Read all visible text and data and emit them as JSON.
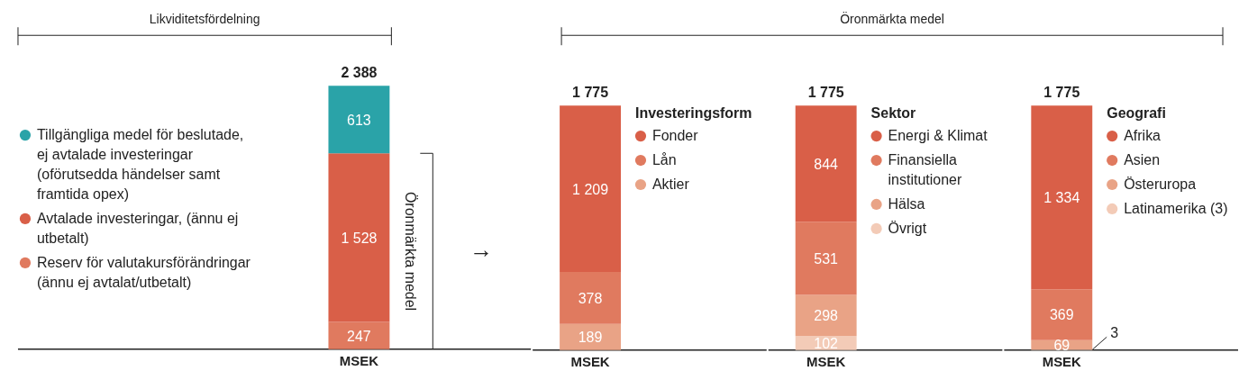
{
  "chart_data": [
    {
      "type": "bar",
      "stacked": true,
      "title": "Likviditetsfördelning",
      "categories": [
        "MSEK"
      ],
      "legend": "left",
      "totals": [
        "2 388"
      ],
      "annotations": [
        "Öronmärkta medel",
        "→"
      ],
      "series": [
        {
          "name": "Reserv för valutakursförändringar (ännu ej avtalat/utbetalt)",
          "color": "#e07a5f",
          "values": [
            247
          ],
          "value_labels": [
            "247"
          ]
        },
        {
          "name": "Avtalade investeringar, (ännu ej utbetalt)",
          "color": "#d95f48",
          "values": [
            1528
          ],
          "value_labels": [
            "1 528"
          ]
        },
        {
          "name": "Tillgängliga medel för beslutade, ej avtalade investeringar (oförutsedda händelser samt framtida opex)",
          "color": "#2aa3a8",
          "values": [
            613
          ],
          "value_labels": [
            "613"
          ]
        }
      ]
    },
    {
      "type": "bar",
      "stacked": true,
      "categories": [
        "MSEK"
      ],
      "legend": "right",
      "legend_title": "Investeringsform",
      "totals": [
        "1 775"
      ],
      "series": [
        {
          "name": "Aktier",
          "color": "#e9a386",
          "values": [
            189
          ],
          "value_labels": [
            "189"
          ]
        },
        {
          "name": "Lån",
          "color": "#e07a5f",
          "values": [
            378
          ],
          "value_labels": [
            "378"
          ]
        },
        {
          "name": "Fonder",
          "color": "#d95f48",
          "values": [
            1209
          ],
          "value_labels": [
            "1 209"
          ]
        }
      ]
    },
    {
      "type": "bar",
      "stacked": true,
      "title": "Öronmärkta medel",
      "categories": [
        "MSEK"
      ],
      "legend": "right",
      "legend_title": "Sektor",
      "totals": [
        "1 775"
      ],
      "series": [
        {
          "name": "Övrigt",
          "color": "#f3cbb7",
          "values": [
            102
          ],
          "value_labels": [
            "102"
          ]
        },
        {
          "name": "Hälsa",
          "color": "#e9a386",
          "values": [
            298
          ],
          "value_labels": [
            "298"
          ]
        },
        {
          "name": "Finansiella institutioner",
          "color": "#e07a5f",
          "values": [
            531
          ],
          "value_labels": [
            "531"
          ]
        },
        {
          "name": "Energi & Klimat",
          "color": "#d95f48",
          "values": [
            844
          ],
          "value_labels": [
            "844"
          ]
        }
      ]
    },
    {
      "type": "bar",
      "stacked": true,
      "categories": [
        "MSEK"
      ],
      "legend": "right",
      "legend_title": "Geografi",
      "totals": [
        "1 775"
      ],
      "series": [
        {
          "name": "Latinamerika (3)",
          "color": "#f3cbb7",
          "values": [
            3
          ],
          "value_labels": [
            "3"
          ]
        },
        {
          "name": "Österuropa",
          "color": "#e9a386",
          "values": [
            69
          ],
          "value_labels": [
            "69"
          ]
        },
        {
          "name": "Asien",
          "color": "#e07a5f",
          "values": [
            369
          ],
          "value_labels": [
            "369"
          ]
        },
        {
          "name": "Afrika",
          "color": "#d95f48",
          "values": [
            1334
          ],
          "value_labels": [
            "1 334"
          ]
        }
      ]
    }
  ]
}
